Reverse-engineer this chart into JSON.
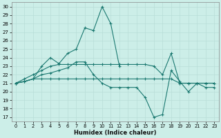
{
  "xlabel": "Humidex (Indice chaleur)",
  "bg_color": "#cceee8",
  "grid_color": "#b8ddd8",
  "line_color": "#1a7870",
  "xlim": [
    -0.5,
    23.5
  ],
  "ylim": [
    16.5,
    30.5
  ],
  "xticks": [
    0,
    1,
    2,
    3,
    4,
    5,
    6,
    7,
    8,
    9,
    10,
    11,
    12,
    13,
    14,
    15,
    16,
    17,
    18,
    19,
    20,
    21,
    22,
    23
  ],
  "yticks": [
    17,
    18,
    19,
    20,
    21,
    22,
    23,
    24,
    25,
    26,
    27,
    28,
    29,
    30
  ],
  "series": [
    {
      "x": [
        0,
        1,
        2,
        3,
        4,
        5,
        6,
        7,
        8,
        9,
        10,
        11,
        12
      ],
      "y": [
        21.0,
        21.2,
        21.5,
        23.0,
        24.0,
        23.3,
        24.5,
        25.0,
        27.5,
        27.2,
        30.0,
        28.0,
        23.0
      ]
    },
    {
      "x": [
        0,
        1,
        2,
        3,
        4,
        5,
        6,
        7,
        8,
        9,
        10,
        11,
        12,
        13,
        14,
        15,
        16,
        17,
        18,
        19,
        20,
        21,
        22,
        23
      ],
      "y": [
        21.0,
        21.2,
        21.5,
        22.0,
        22.2,
        22.5,
        22.8,
        23.5,
        23.5,
        22.0,
        21.0,
        20.5,
        20.5,
        20.5,
        20.5,
        19.3,
        17.0,
        17.3,
        22.5,
        21.2,
        20.0,
        21.0,
        20.5,
        20.5
      ]
    },
    {
      "x": [
        0,
        1,
        2,
        3,
        4,
        5,
        6,
        7,
        8,
        9,
        10,
        11,
        12,
        13,
        14,
        15,
        16,
        17,
        18,
        19,
        20,
        21,
        22,
        23
      ],
      "y": [
        21.0,
        21.5,
        22.0,
        22.5,
        23.0,
        23.2,
        23.2,
        23.2,
        23.2,
        23.2,
        23.2,
        23.2,
        23.2,
        23.2,
        23.2,
        23.2,
        23.0,
        22.0,
        24.5,
        21.0,
        21.0,
        21.0,
        21.0,
        21.0
      ]
    },
    {
      "x": [
        0,
        1,
        2,
        3,
        4,
        5,
        6,
        7,
        8,
        9,
        10,
        11,
        12,
        13,
        14,
        15,
        16,
        17,
        18,
        19,
        20,
        21,
        22,
        23
      ],
      "y": [
        21.0,
        21.2,
        21.5,
        21.5,
        21.5,
        21.5,
        21.5,
        21.5,
        21.5,
        21.5,
        21.5,
        21.5,
        21.5,
        21.5,
        21.5,
        21.5,
        21.5,
        21.5,
        21.5,
        21.0,
        21.0,
        21.0,
        21.0,
        21.0
      ]
    }
  ]
}
